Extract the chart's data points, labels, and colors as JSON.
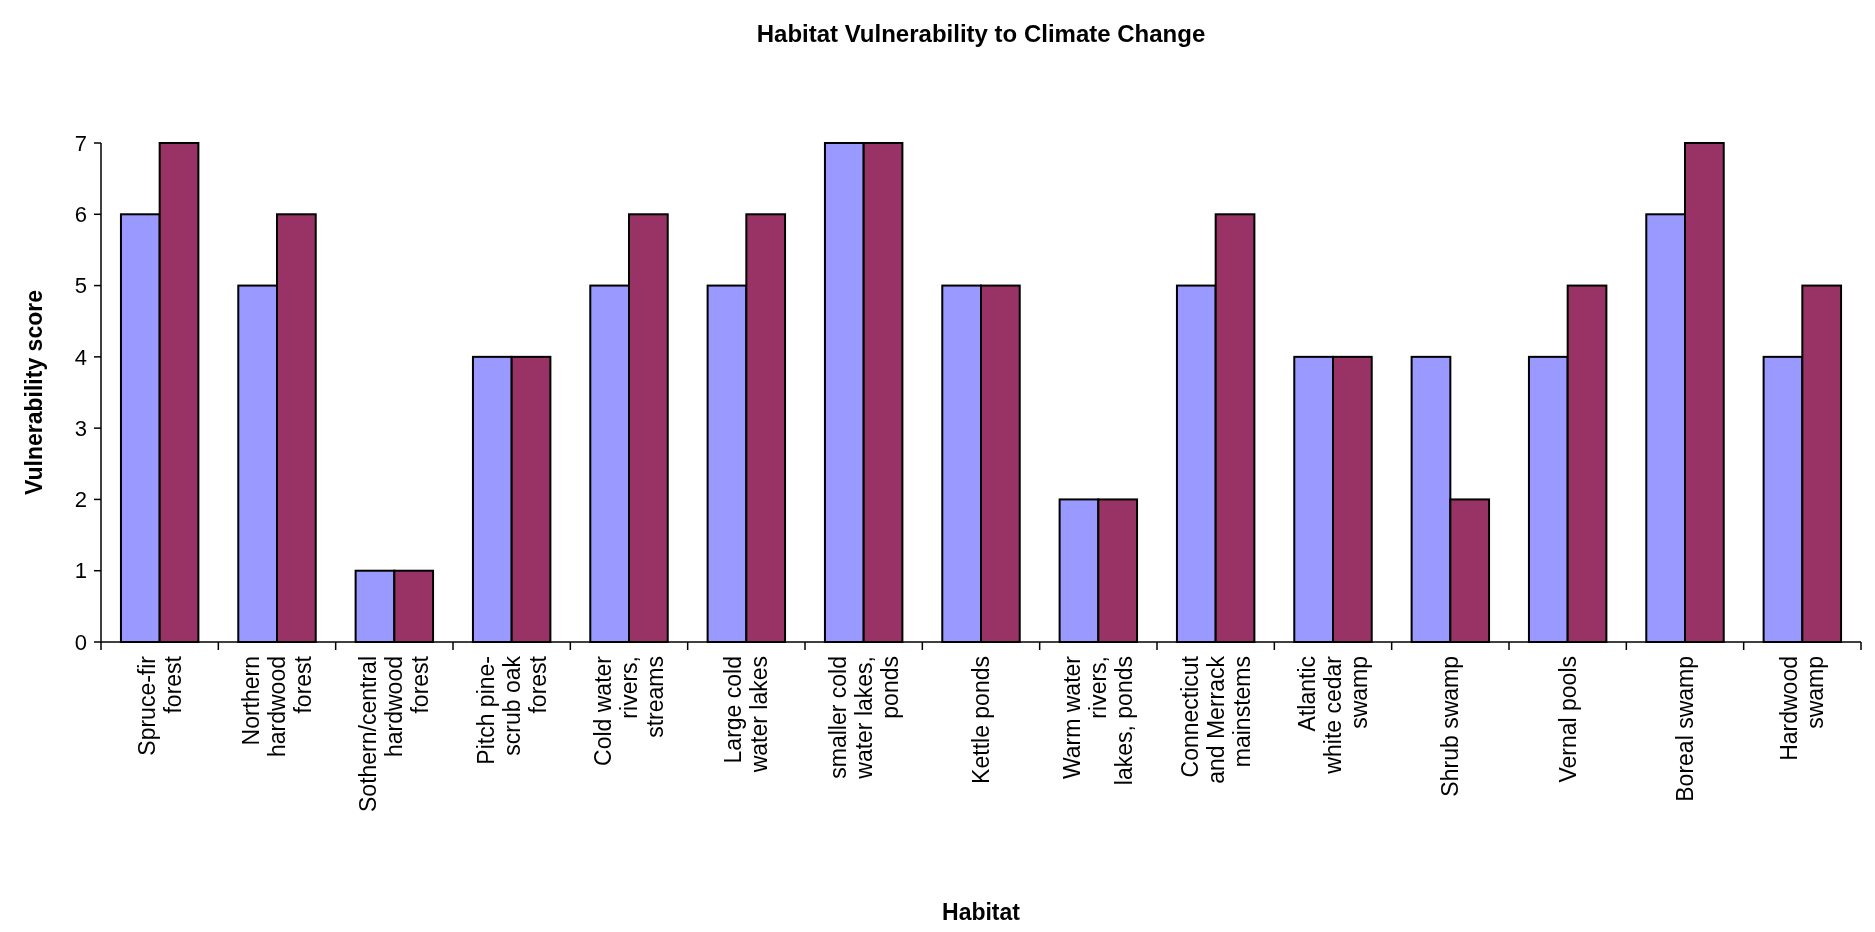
{
  "chart_data": {
    "type": "bar",
    "title": "Habitat Vulnerability to Climate Change",
    "xlabel": "Habitat",
    "ylabel": "Vulnerability score",
    "categories": [
      "Spruce-fir forest",
      "Northern hardwood forest",
      "Sothern/central hardwood forest",
      "Pitch pine-scrub oak forest",
      "Cold water rivers, streams",
      "Large cold water lakes",
      "smaller cold water lakes, ponds",
      "Kettle ponds",
      "Warm water rivers, lakes, ponds",
      "Connecticut and Merrack mainstems",
      "Atlantic white cedar swamp",
      "Shrub swamp",
      "Vernal pools",
      "Boreal swamp",
      "Hardwood swamp"
    ],
    "series": [
      {
        "color": "#9999ff",
        "values": [
          6,
          5,
          1,
          4,
          5,
          5,
          7,
          5,
          2,
          5,
          4,
          4,
          4,
          6,
          4
        ]
      },
      {
        "color": "#993366",
        "values": [
          7,
          6,
          1,
          4,
          6,
          6,
          7,
          5,
          2,
          6,
          4,
          2,
          5,
          7,
          5
        ]
      }
    ],
    "ylim": [
      0,
      7
    ],
    "yticks": [
      0,
      1,
      2,
      3,
      4,
      5,
      6,
      7
    ],
    "grid": false
  }
}
